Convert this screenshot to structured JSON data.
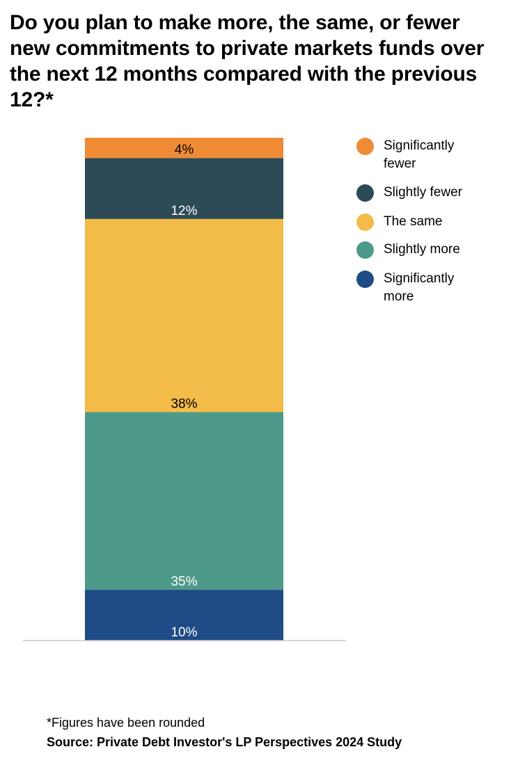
{
  "title": "Do you plan to make more, the same, or fewer new commitments to private markets funds over the next 12 months compared with the previous 12?*",
  "footnote": "*Figures have been rounded",
  "source": "Source: Private Debt Investor's LP Perspectives 2024 Study",
  "chart_data": {
    "type": "bar",
    "stacked": true,
    "categories": [
      ""
    ],
    "series": [
      {
        "name": "Significantly more",
        "values": [
          10
        ],
        "label": "10%",
        "color": "#1F4C86",
        "label_color": "#ffffff"
      },
      {
        "name": "Slightly more",
        "values": [
          35
        ],
        "label": "35%",
        "color": "#4E9A8A",
        "label_color": "#ffffff"
      },
      {
        "name": "The same",
        "values": [
          38
        ],
        "label": "38%",
        "color": "#F3BB47",
        "label_color": "#000000"
      },
      {
        "name": "Slightly fewer",
        "values": [
          12
        ],
        "label": "12%",
        "color": "#2D4A57",
        "label_color": "#ffffff"
      },
      {
        "name": "Significantly fewer",
        "values": [
          4
        ],
        "label": "4%",
        "color": "#F08B35",
        "label_color": "#000000"
      }
    ],
    "ylim": [
      0,
      99
    ],
    "grid": false,
    "legend_position": "right",
    "legend_order": [
      "Significantly fewer",
      "Slightly fewer",
      "The same",
      "Slightly more",
      "Significantly more"
    ]
  }
}
